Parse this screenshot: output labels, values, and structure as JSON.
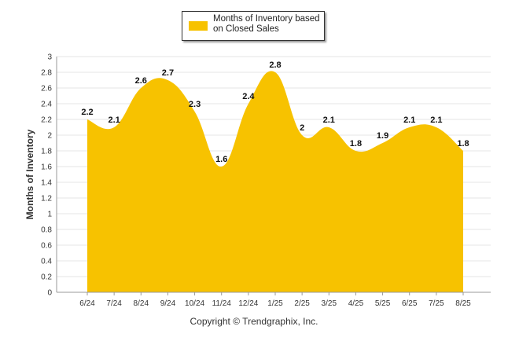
{
  "legend": {
    "label": "Months of Inventory based on Closed Sales"
  },
  "footer": {
    "copyright": "Copyright © Trendgraphix, Inc."
  },
  "colors": {
    "fill": "#f7c200",
    "grid": "#e6e6e6",
    "axis": "#999999",
    "text": "#333333"
  },
  "chart_data": {
    "type": "area",
    "ylabel": "Months of Inventory",
    "xlabel": "",
    "ylim": [
      0,
      3
    ],
    "yticks": [
      "0",
      "0.2",
      "0.4",
      "0.6",
      "0.8",
      "1",
      "1.2",
      "1.4",
      "1.6",
      "1.8",
      "2",
      "2.2",
      "2.4",
      "2.6",
      "2.8",
      "3"
    ],
    "categories": [
      "6/24",
      "7/24",
      "8/24",
      "9/24",
      "10/24",
      "11/24",
      "12/24",
      "1/25",
      "2/25",
      "3/25",
      "4/25",
      "5/25",
      "6/25",
      "7/25",
      "8/25"
    ],
    "series": [
      {
        "name": "Months of Inventory based on Closed Sales",
        "values": [
          2.2,
          2.1,
          2.6,
          2.7,
          2.3,
          1.6,
          2.4,
          2.8,
          2.0,
          2.1,
          1.8,
          1.9,
          2.1,
          2.1,
          1.8
        ]
      }
    ],
    "data_labels": [
      "2.2",
      "2.1",
      "2.6",
      "2.7",
      "2.3",
      "1.6",
      "2.4",
      "2.8",
      "2",
      "2.1",
      "1.8",
      "1.9",
      "2.1",
      "2.1",
      "1.8"
    ],
    "grid": true,
    "legend_position": "top-center"
  }
}
